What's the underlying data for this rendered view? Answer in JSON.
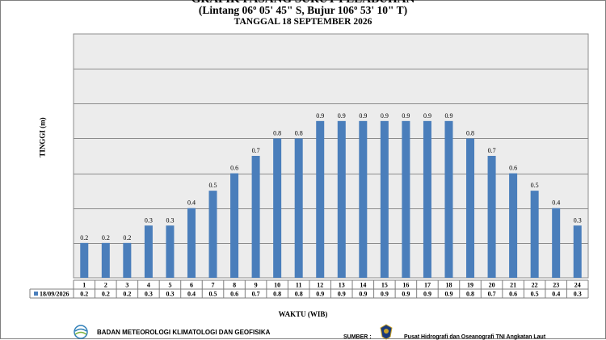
{
  "header": {
    "title": "GRAFIK PASANG SURUT PELABUHAN",
    "coords": "(Lintang 06º 05' 45\" S, Bujur 106º 53' 10\" T)",
    "date": "TANGGAL 18 SEPTEMBER 2026"
  },
  "footer": {
    "agency": "BADAN METEOROLOGI KLIMATOLOGI DAN GEOFISIKA",
    "source_label": "SUMBER :",
    "source": "Pusat Hidrografi dan Oseanografi TNI Angkatan Laut"
  },
  "chart_data": {
    "type": "bar",
    "title": "",
    "xlabel": "WAKTU (WIB)",
    "ylabel": "TINGGI (m)",
    "categories": [
      "1",
      "2",
      "3",
      "4",
      "5",
      "6",
      "7",
      "8",
      "9",
      "10",
      "11",
      "12",
      "13",
      "14",
      "15",
      "16",
      "17",
      "18",
      "19",
      "20",
      "21",
      "22",
      "23",
      "24"
    ],
    "series": [
      {
        "name": "18/09/2026",
        "values": [
          0.2,
          0.2,
          0.2,
          0.3,
          0.3,
          0.4,
          0.5,
          0.6,
          0.7,
          0.8,
          0.8,
          0.9,
          0.9,
          0.9,
          0.9,
          0.9,
          0.9,
          0.9,
          0.8,
          0.7,
          0.6,
          0.5,
          0.4,
          0.3
        ],
        "labels": [
          "0.2",
          "0.2",
          "0.2",
          "0.3",
          "0.3",
          "0.4",
          "0.5",
          "0.6",
          "0.7",
          "0.8",
          "0.8",
          "0.9",
          "0.9",
          "0.9",
          "0.9",
          "0.9",
          "0.9",
          "0.9",
          "0.8",
          "0.7",
          "0.6",
          "0.5",
          "0.4",
          "0.3"
        ],
        "color": "#4a7ebb"
      }
    ],
    "ylim": [
      0,
      1.4
    ],
    "grid": true,
    "y_tick_labels_shown": false,
    "data_table": true,
    "plot_background": "#ececec"
  }
}
